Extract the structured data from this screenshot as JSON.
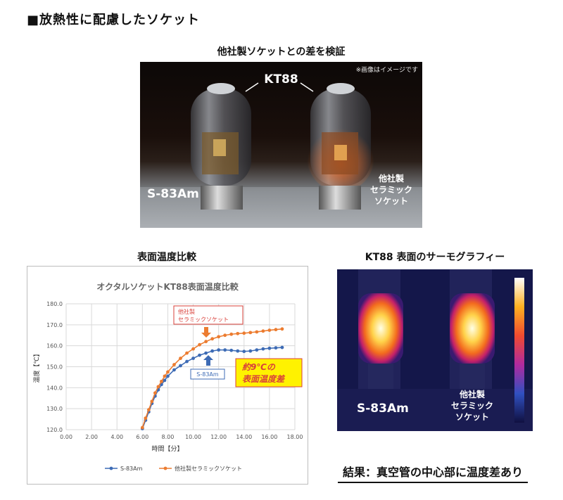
{
  "heading": "■放熱性に配慮したソケット",
  "photo_section": {
    "title": "他社製ソケットとの差を検証",
    "note": "※画像はイメージです",
    "tube_label": "KT88",
    "left_label": "S-83Am",
    "right_label_lines": [
      "他社製",
      "セラミック",
      "ソケット"
    ]
  },
  "chart_section": {
    "title": "表面温度比較"
  },
  "thermo_section": {
    "title": "KT88 表面のサーモグラフィー",
    "left_label": "S-83Am",
    "right_label_lines": [
      "他社製",
      "セラミック",
      "ソケット"
    ]
  },
  "result": "結果：真空管の中心部に温度差あり",
  "chart_data": {
    "type": "line",
    "title": "オクタルソケットKT88表面温度比較",
    "xlabel": "時間【分】",
    "ylabel": "温度【℃】",
    "xlim": [
      0,
      18
    ],
    "ylim": [
      120,
      180
    ],
    "x_ticks": [
      "0.00",
      "2.00",
      "4.00",
      "6.00",
      "8.00",
      "10.00",
      "12.00",
      "14.00",
      "16.00",
      "18.00"
    ],
    "y_ticks": [
      "120.0",
      "130.0",
      "140.0",
      "150.0",
      "160.0",
      "170.0",
      "180.0"
    ],
    "grid": true,
    "legend": "bottom",
    "series": [
      {
        "name": "S-83Am",
        "color": "#3d6bb5",
        "x": [
          6.0,
          6.25,
          6.5,
          6.75,
          7.0,
          7.25,
          7.5,
          7.75,
          8.0,
          8.5,
          9.0,
          9.5,
          10.0,
          10.5,
          11.0,
          11.5,
          12.0,
          12.5,
          13.0,
          13.5,
          14.0,
          14.5,
          15.0,
          15.5,
          16.0,
          16.5,
          17.0
        ],
        "values": [
          120.5,
          124.5,
          128.5,
          132.5,
          136.0,
          139.0,
          141.5,
          143.5,
          145.5,
          148.5,
          150.5,
          152.5,
          154.0,
          155.5,
          156.5,
          157.5,
          158.0,
          158.0,
          157.8,
          157.5,
          157.3,
          157.5,
          158.0,
          158.5,
          158.8,
          159.0,
          159.2
        ]
      },
      {
        "name": "他社製セラミックソケット",
        "color": "#ec7c30",
        "x": [
          6.0,
          6.25,
          6.5,
          6.75,
          7.0,
          7.25,
          7.5,
          7.75,
          8.0,
          8.5,
          9.0,
          9.5,
          10.0,
          10.5,
          11.0,
          11.5,
          12.0,
          12.5,
          13.0,
          13.5,
          14.0,
          14.5,
          15.0,
          15.5,
          16.0,
          16.5,
          17.0
        ],
        "values": [
          121.0,
          125.5,
          129.5,
          133.5,
          137.5,
          140.5,
          143.0,
          145.5,
          147.5,
          151.0,
          154.0,
          156.5,
          158.5,
          160.5,
          162.0,
          163.3,
          164.3,
          165.0,
          165.5,
          165.8,
          166.0,
          166.3,
          166.6,
          167.0,
          167.4,
          167.7,
          168.0
        ]
      }
    ],
    "annotations": {
      "other_box_lines": [
        "他社製",
        "セラミックソケット"
      ],
      "s83_box": "S-83Am",
      "diff_lines": [
        "約9℃の",
        "表面温度差"
      ]
    }
  }
}
